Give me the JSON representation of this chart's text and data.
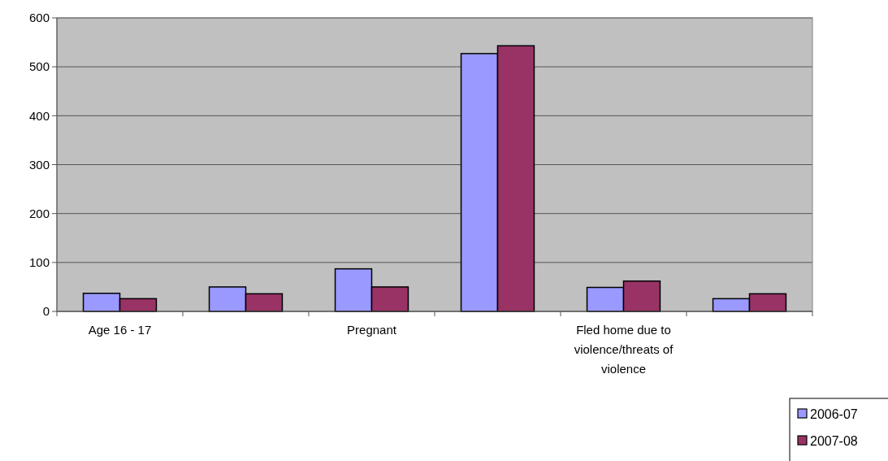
{
  "chart_data": {
    "type": "bar",
    "categories": [
      "Age 16 - 17",
      null,
      "Pregnant",
      null,
      "Fled home due to violence/threats of violence",
      null
    ],
    "series": [
      {
        "name": "2006-07",
        "color": "#9999ff",
        "values": [
          37,
          50,
          87,
          527,
          49,
          26
        ]
      },
      {
        "name": "2007-08",
        "color": "#993366",
        "values": [
          26,
          36,
          50,
          543,
          62,
          36
        ]
      }
    ],
    "ylim": [
      0,
      600
    ],
    "yticks": [
      0,
      100,
      200,
      300,
      400,
      500,
      600
    ],
    "grid": "y",
    "legend": "bottom right"
  }
}
